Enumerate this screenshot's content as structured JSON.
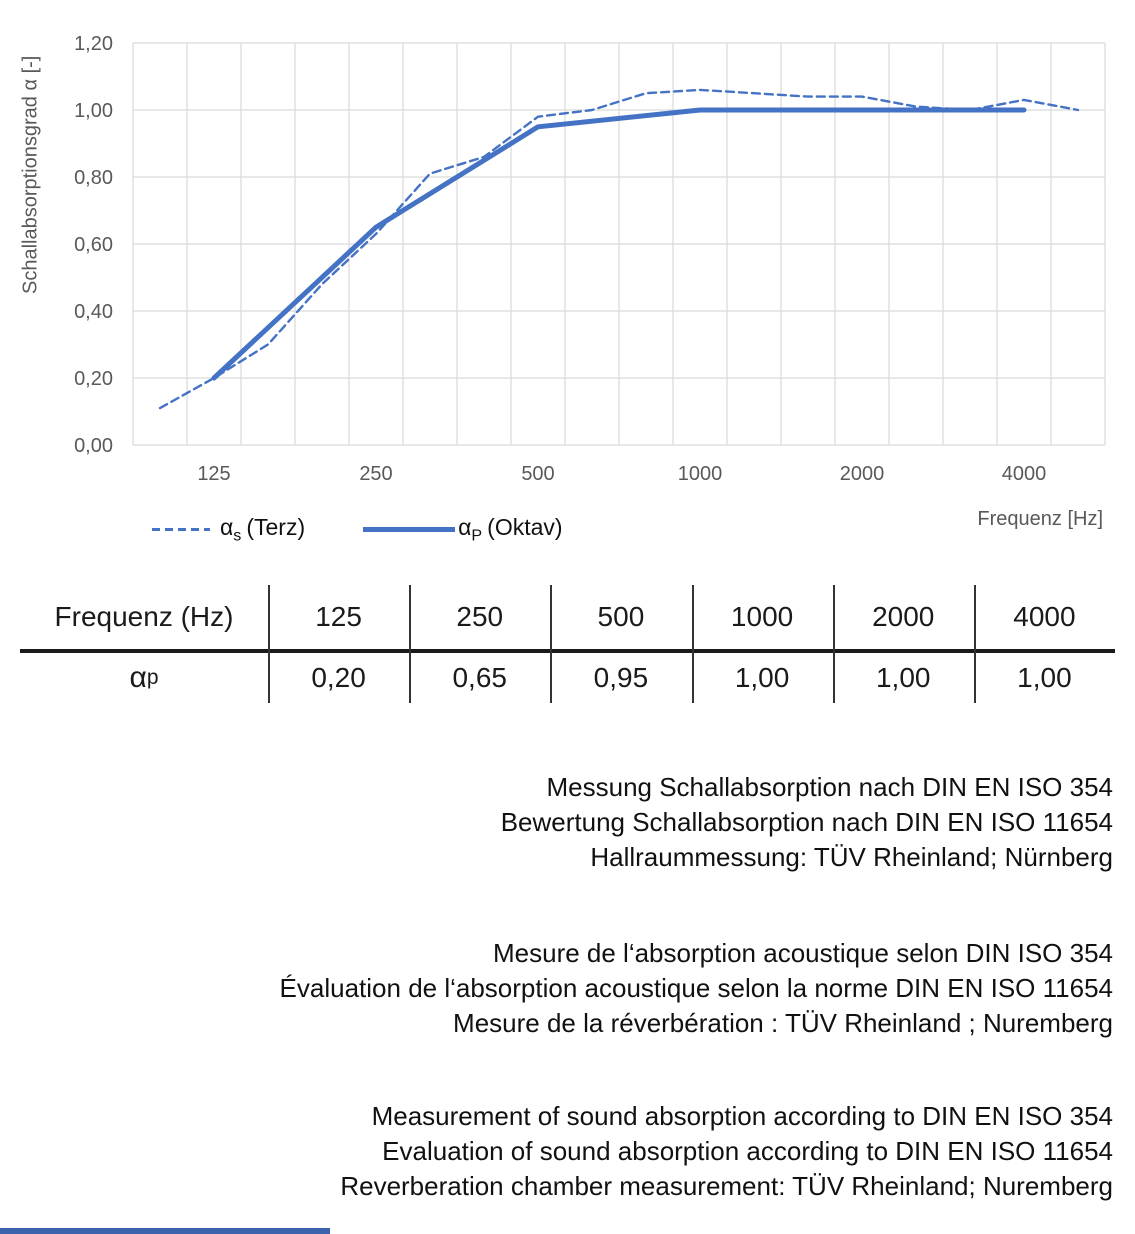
{
  "colors": {
    "series_blue": "#4472C4",
    "grid": "#D9D9D9",
    "axis_text": "#595959",
    "text": "#1a1a1a",
    "footer_bar": "#3a62ad"
  },
  "chart_data": {
    "type": "line",
    "title": "",
    "xlabel": "Frequenz [Hz]",
    "ylabel": "Schallabsorptionsgrad α [-]",
    "ylim": [
      0,
      1.2
    ],
    "grid": true,
    "legend_position": "bottom-left",
    "x_axis_scale": "third-octave categories",
    "categories": [
      100,
      125,
      160,
      200,
      250,
      315,
      400,
      500,
      630,
      800,
      1000,
      1250,
      1600,
      2000,
      2500,
      3150,
      4000,
      5000
    ],
    "y_ticks": [
      "0,00",
      "0,20",
      "0,40",
      "0,60",
      "0,80",
      "1,00",
      "1,20"
    ],
    "x_tick_labels": [
      "125",
      "250",
      "500",
      "1000",
      "2000",
      "4000"
    ],
    "series": [
      {
        "id": "terz-line",
        "name": "αs (Terz)",
        "style": "dashed",
        "color": "#4472C4",
        "width": 2.4,
        "dash": "8 5",
        "x": [
          100,
          125,
          160,
          200,
          250,
          315,
          400,
          500,
          630,
          800,
          1000,
          1250,
          1600,
          2000,
          2500,
          3150,
          4000,
          5000
        ],
        "values": [
          0.11,
          0.2,
          0.3,
          0.48,
          0.63,
          0.81,
          0.86,
          0.98,
          1.0,
          1.05,
          1.06,
          1.05,
          1.04,
          1.04,
          1.01,
          1.0,
          1.03,
          1.0
        ]
      },
      {
        "id": "oktav-line",
        "name": "αP (Oktav)",
        "style": "solid",
        "color": "#4472C4",
        "width": 5,
        "dash": "",
        "x": [
          125,
          250,
          500,
          1000,
          2000,
          4000
        ],
        "values": [
          0.2,
          0.65,
          0.95,
          1.0,
          1.0,
          1.0
        ]
      }
    ]
  },
  "legend": {
    "terz": {
      "base": "α",
      "sub": "s",
      "rest": "(Terz)"
    },
    "oktav": {
      "base": "α",
      "sub": "P",
      "rest": "(Oktav)"
    }
  },
  "table": {
    "header_label": "Frequenz (Hz)",
    "row_label_base": "α",
    "row_label_sub": "p",
    "frequencies": [
      "125",
      "250",
      "500",
      "1000",
      "2000",
      "4000"
    ],
    "values": [
      "0,20",
      "0,65",
      "0,95",
      "1,00",
      "1,00",
      "1,00"
    ]
  },
  "notes": {
    "german": [
      "Messung Schallabsorption nach DIN EN ISO 354",
      "Bewertung Schallabsorption nach DIN EN ISO 11654",
      "Hallraummessung: TÜV Rheinland; Nürnberg"
    ],
    "french": [
      "Mesure de l‘absorption acoustique selon DIN ISO 354",
      "Évaluation de l‘absorption acoustique selon la norme DIN EN ISO 11654",
      "Mesure de la réverbération : TÜV Rheinland ; Nuremberg"
    ],
    "english": [
      "Measurement of sound absorption according to DIN EN ISO 354",
      "Evaluation of sound absorption according to DIN EN ISO 11654",
      "Reverberation chamber measurement: TÜV Rheinland; Nuremberg"
    ]
  }
}
